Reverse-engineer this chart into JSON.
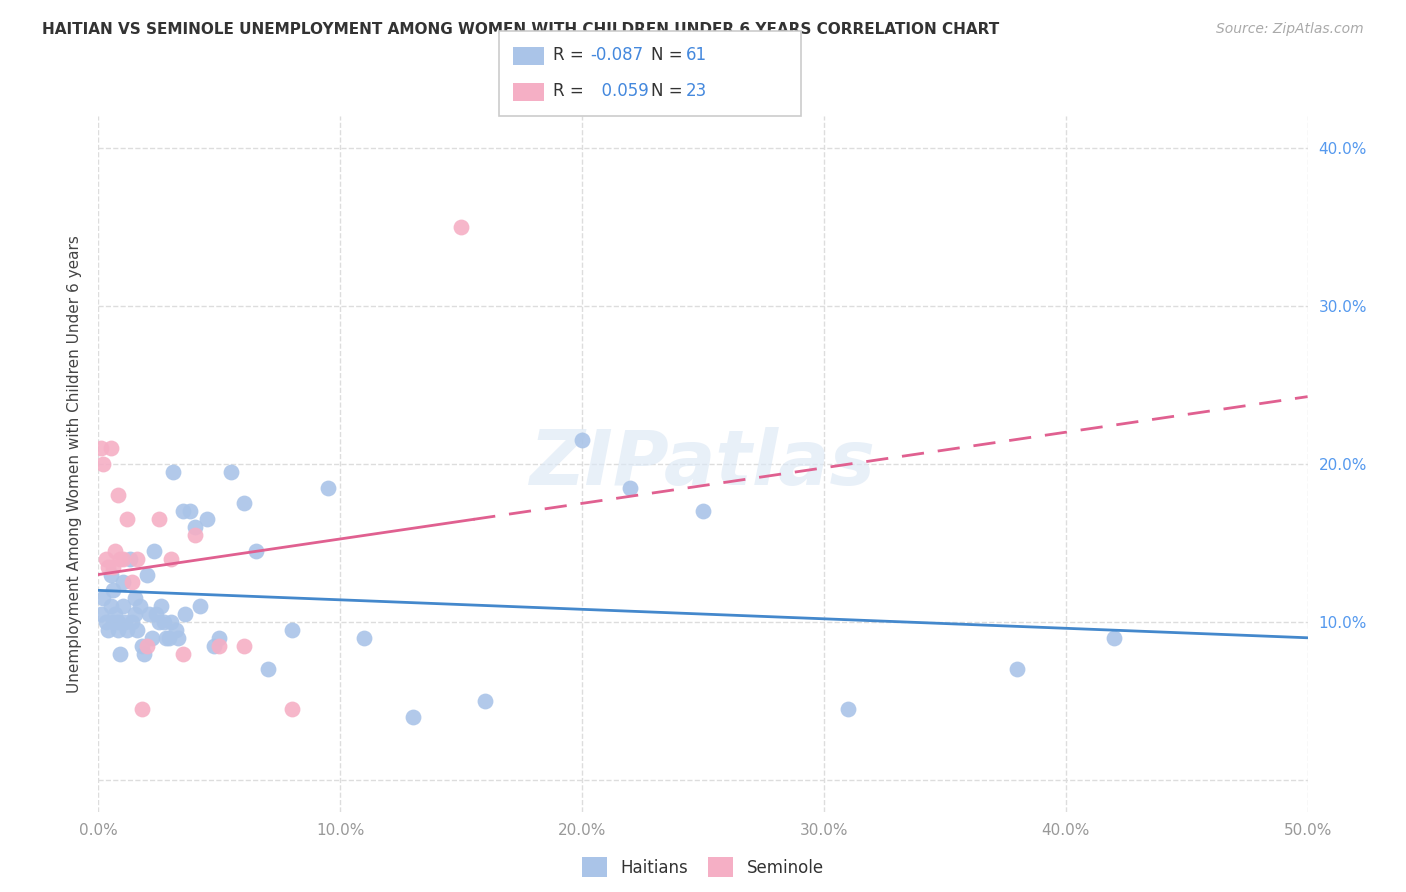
{
  "title": "HAITIAN VS SEMINOLE UNEMPLOYMENT AMONG WOMEN WITH CHILDREN UNDER 6 YEARS CORRELATION CHART",
  "source": "Source: ZipAtlas.com",
  "ylabel": "Unemployment Among Women with Children Under 6 years",
  "xlim": [
    0.0,
    0.5
  ],
  "ylim": [
    -0.02,
    0.42
  ],
  "xticks": [
    0.0,
    0.1,
    0.2,
    0.3,
    0.4,
    0.5
  ],
  "xticklabels": [
    "0.0%",
    "10.0%",
    "20.0%",
    "30.0%",
    "40.0%",
    "50.0%"
  ],
  "yticks": [
    0.0,
    0.1,
    0.2,
    0.3,
    0.4
  ],
  "yticklabels_right": [
    "",
    "10.0%",
    "20.0%",
    "30.0%",
    "40.0%"
  ],
  "background_color": "#ffffff",
  "grid_color": "#dddddd",
  "haitian_color": "#aac4e8",
  "seminole_color": "#f5afc5",
  "haitian_line_color": "#4488cc",
  "seminole_line_color": "#e06090",
  "legend_r_haitian": "-0.087",
  "legend_n_haitian": "61",
  "legend_r_seminole": "0.059",
  "legend_n_seminole": "23",
  "haitian_x": [
    0.001,
    0.002,
    0.003,
    0.004,
    0.005,
    0.005,
    0.006,
    0.006,
    0.007,
    0.008,
    0.008,
    0.009,
    0.01,
    0.01,
    0.011,
    0.012,
    0.013,
    0.014,
    0.015,
    0.015,
    0.016,
    0.017,
    0.018,
    0.019,
    0.02,
    0.021,
    0.022,
    0.023,
    0.024,
    0.025,
    0.026,
    0.027,
    0.028,
    0.029,
    0.03,
    0.031,
    0.032,
    0.033,
    0.035,
    0.036,
    0.038,
    0.04,
    0.042,
    0.045,
    0.048,
    0.05,
    0.055,
    0.06,
    0.065,
    0.07,
    0.08,
    0.095,
    0.11,
    0.13,
    0.16,
    0.2,
    0.22,
    0.25,
    0.31,
    0.38,
    0.42
  ],
  "haitian_y": [
    0.105,
    0.115,
    0.1,
    0.095,
    0.13,
    0.11,
    0.12,
    0.1,
    0.105,
    0.1,
    0.095,
    0.08,
    0.125,
    0.11,
    0.1,
    0.095,
    0.14,
    0.1,
    0.115,
    0.105,
    0.095,
    0.11,
    0.085,
    0.08,
    0.13,
    0.105,
    0.09,
    0.145,
    0.105,
    0.1,
    0.11,
    0.1,
    0.09,
    0.09,
    0.1,
    0.195,
    0.095,
    0.09,
    0.17,
    0.105,
    0.17,
    0.16,
    0.11,
    0.165,
    0.085,
    0.09,
    0.195,
    0.175,
    0.145,
    0.07,
    0.095,
    0.185,
    0.09,
    0.04,
    0.05,
    0.215,
    0.185,
    0.17,
    0.045,
    0.07,
    0.09
  ],
  "seminole_x": [
    0.001,
    0.002,
    0.003,
    0.004,
    0.005,
    0.006,
    0.007,
    0.008,
    0.009,
    0.01,
    0.012,
    0.014,
    0.016,
    0.018,
    0.02,
    0.025,
    0.03,
    0.035,
    0.04,
    0.05,
    0.06,
    0.08,
    0.15
  ],
  "seminole_y": [
    0.21,
    0.2,
    0.14,
    0.135,
    0.21,
    0.135,
    0.145,
    0.18,
    0.14,
    0.14,
    0.165,
    0.125,
    0.14,
    0.045,
    0.085,
    0.165,
    0.14,
    0.08,
    0.155,
    0.085,
    0.085,
    0.045,
    0.35
  ]
}
